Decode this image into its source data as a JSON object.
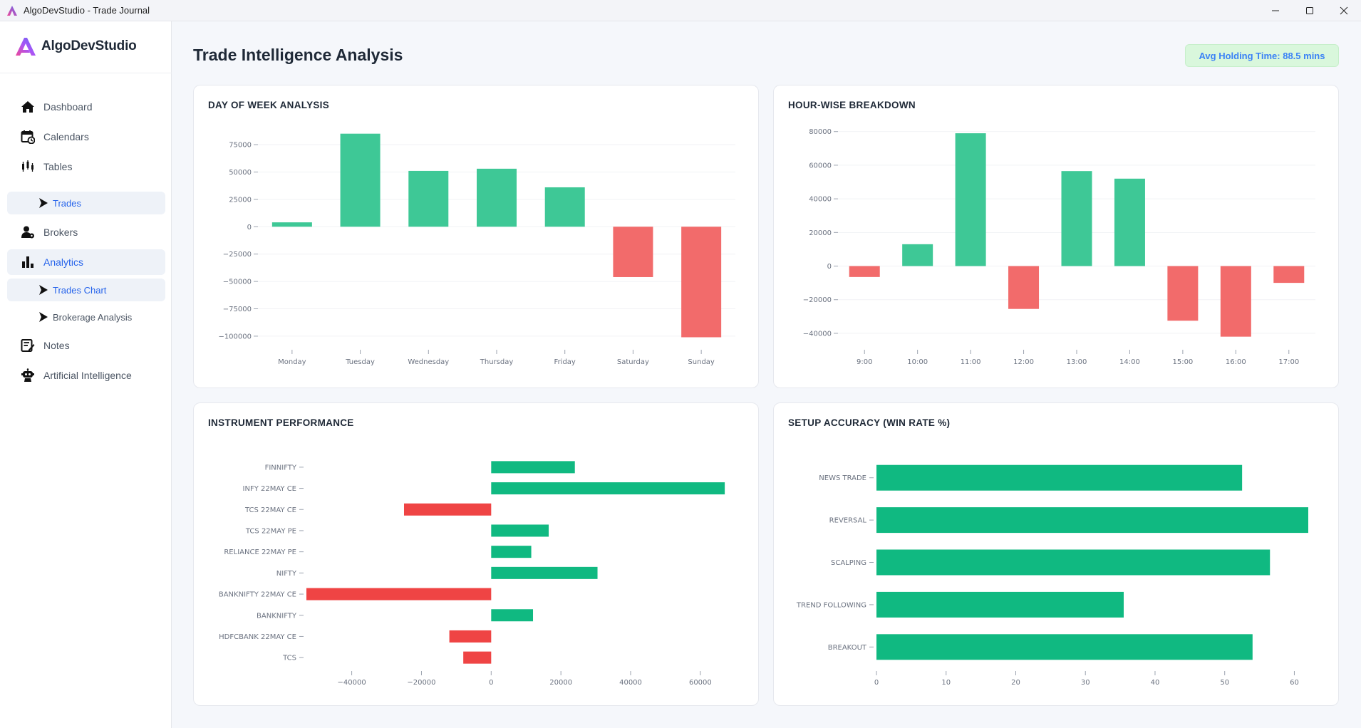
{
  "window": {
    "title": "AlgoDevStudio - Trade Journal"
  },
  "sidebar": {
    "logo_text": "AlgoDevStudio",
    "items": [
      {
        "label": "Dashboard",
        "icon": "home-icon"
      },
      {
        "label": "Calendars",
        "icon": "calendar-icon"
      },
      {
        "label": "Tables",
        "icon": "candlestick-icon"
      },
      {
        "label": "Trades",
        "icon": "play-arrow-icon",
        "sub": true,
        "active": true
      },
      {
        "label": "Brokers",
        "icon": "user-icon"
      },
      {
        "label": "Analytics",
        "icon": "bar-chart-icon",
        "active": true
      },
      {
        "label": "Trades Chart",
        "icon": "play-arrow-icon",
        "sub": true,
        "active": true
      },
      {
        "label": "Brokerage Analysis",
        "icon": "play-arrow-icon",
        "sub": true
      },
      {
        "label": "Notes",
        "icon": "notes-icon"
      },
      {
        "label": "Artificial Intelligence",
        "icon": "robot-icon"
      }
    ]
  },
  "header": {
    "title": "Trade Intelligence Analysis",
    "avg_holding": "Avg Holding Time: 88.5 mins"
  },
  "colors": {
    "positive": "#3ec896",
    "negative": "#f26b6b",
    "positive_strong": "#10b981",
    "negative_strong": "#ef4444",
    "accent": "#2563eb"
  },
  "chart_data": [
    {
      "id": "day-of-week",
      "title": "DAY OF WEEK ANALYSIS",
      "type": "bar",
      "orientation": "vertical",
      "categories": [
        "Monday",
        "Tuesday",
        "Wednesday",
        "Thursday",
        "Friday",
        "Saturday",
        "Sunday"
      ],
      "values": [
        4000,
        85000,
        51000,
        53000,
        36000,
        -46000,
        -101000
      ],
      "yticks": [
        75000,
        50000,
        25000,
        0,
        -25000,
        -50000,
        -75000,
        -100000
      ],
      "ytick_labels": [
        "75000",
        "50000",
        "25000",
        "0",
        "−25000",
        "−50000",
        "−75000",
        "−100000"
      ],
      "ylim": [
        -102000,
        90000
      ],
      "grid": true
    },
    {
      "id": "hour-wise",
      "title": "HOUR-WISE BREAKDOWN",
      "type": "bar",
      "orientation": "vertical",
      "categories": [
        "9:00",
        "10:00",
        "11:00",
        "12:00",
        "13:00",
        "14:00",
        "15:00",
        "16:00",
        "17:00"
      ],
      "values": [
        -6500,
        13000,
        79000,
        -25500,
        56500,
        52000,
        -32500,
        -42000,
        -10000
      ],
      "yticks": [
        80000,
        60000,
        40000,
        20000,
        0,
        -20000,
        -40000
      ],
      "ytick_labels": [
        "80000",
        "60000",
        "40000",
        "20000",
        "0",
        "−20000",
        "−40000"
      ],
      "ylim": [
        -43000,
        82000
      ],
      "grid": true
    },
    {
      "id": "instrument",
      "title": "INSTRUMENT PERFORMANCE",
      "type": "bar",
      "orientation": "horizontal",
      "categories": [
        "FINNIFTY",
        "INFY 22MAY CE",
        "TCS 22MAY CE",
        "TCS 22MAY PE",
        "RELIANCE 22MAY PE",
        "NIFTY",
        "BANKNIFTY 22MAY CE",
        "BANKNIFTY",
        "HDFCBANK 22MAY CE",
        "TCS"
      ],
      "values": [
        24000,
        67000,
        -25000,
        16500,
        11500,
        30500,
        -53000,
        12000,
        -12000,
        -8000
      ],
      "xticks": [
        -40000,
        -20000,
        0,
        20000,
        40000,
        60000
      ],
      "xtick_labels": [
        "−40000",
        "−20000",
        "0",
        "20000",
        "40000",
        "60000"
      ],
      "xlim": [
        -53000,
        68000
      ],
      "grid": false
    },
    {
      "id": "setup-accuracy",
      "title": "SETUP ACCURACY (WIN RATE %)",
      "type": "bar",
      "orientation": "horizontal",
      "categories": [
        "NEWS TRADE",
        "REVERSAL",
        "SCALPING",
        "TREND FOLLOWING",
        "BREAKOUT"
      ],
      "values": [
        52.5,
        62,
        56.5,
        35.5,
        54
      ],
      "xticks": [
        0,
        10,
        20,
        30,
        40,
        50,
        60
      ],
      "xtick_labels": [
        "0",
        "10",
        "20",
        "30",
        "40",
        "50",
        "60"
      ],
      "xlim": [
        0,
        62
      ],
      "grid": false
    }
  ]
}
